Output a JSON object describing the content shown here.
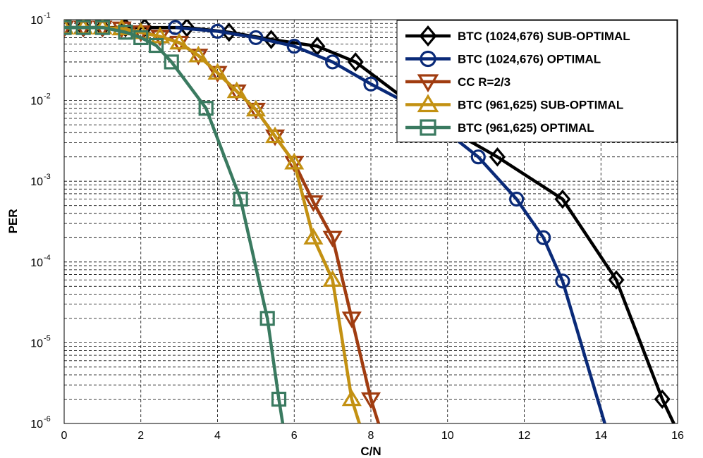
{
  "chart_data": {
    "type": "line",
    "title": "",
    "xlabel": "C/N",
    "ylabel": "PER",
    "xlim": [
      0,
      16
    ],
    "ylim": [
      1e-06,
      0.1
    ],
    "yscale": "log",
    "grid": true,
    "legend_position": "top-right",
    "x_ticks": [
      "0",
      "2",
      "4",
      "6",
      "8",
      "10",
      "12",
      "14",
      "16"
    ],
    "y_ticks": [
      {
        "base": "10",
        "exp": "-1"
      },
      {
        "base": "10",
        "exp": "-2"
      },
      {
        "base": "10",
        "exp": "-3"
      },
      {
        "base": "10",
        "exp": "-4"
      },
      {
        "base": "10",
        "exp": "-5"
      },
      {
        "base": "10",
        "exp": "-6"
      }
    ],
    "series": [
      {
        "name": "BTC (1024,676) SUB-OPTIMAL",
        "color": "#000000",
        "marker": "diamond",
        "x": [
          0,
          0.5,
          1.0,
          1.6,
          2.1,
          3.2,
          4.3,
          5.4,
          6.6,
          7.6,
          9.0,
          10.0,
          11.3,
          13.0,
          14.4,
          15.6,
          15.9
        ],
        "y": [
          0.08,
          0.08,
          0.08,
          0.08,
          0.08,
          0.08,
          0.07,
          0.057,
          0.047,
          0.03,
          0.0095,
          0.0045,
          0.002,
          0.0006,
          6e-05,
          2e-06,
          1e-06
        ]
      },
      {
        "name": "BTC (1024,676) OPTIMAL",
        "color": "#0a2a78",
        "marker": "circle",
        "x": [
          2.9,
          4.0,
          5.0,
          6.0,
          7.0,
          8.0,
          9.0,
          10.0,
          10.8,
          11.8,
          12.5,
          13.0,
          14.1
        ],
        "y": [
          0.08,
          0.072,
          0.06,
          0.047,
          0.03,
          0.016,
          0.009,
          0.004,
          0.002,
          0.0006,
          0.0002,
          5.8e-05,
          1e-06
        ]
      },
      {
        "name": "CC R=2/3",
        "color": "#a03c10",
        "marker": "triangle-down",
        "x": [
          0,
          0.5,
          1.0,
          1.5,
          2.0,
          2.5,
          3.0,
          3.5,
          4.0,
          4.5,
          5.0,
          5.5,
          6.0,
          6.5,
          7.0,
          7.5,
          8.0,
          8.2
        ],
        "y": [
          0.08,
          0.08,
          0.08,
          0.078,
          0.07,
          0.062,
          0.052,
          0.036,
          0.022,
          0.013,
          0.0077,
          0.0036,
          0.0017,
          0.00055,
          0.0002,
          2e-05,
          2e-06,
          1e-06
        ]
      },
      {
        "name": "BTC (961,625) SUB-OPTIMAL",
        "color": "#c39112",
        "marker": "triangle-up",
        "x": [
          0,
          0.5,
          1.0,
          1.5,
          2.0,
          2.5,
          3.0,
          3.5,
          4.0,
          4.5,
          5.0,
          5.5,
          6.0,
          6.5,
          7.0,
          7.5,
          7.7
        ],
        "y": [
          0.08,
          0.08,
          0.08,
          0.078,
          0.07,
          0.062,
          0.052,
          0.036,
          0.022,
          0.013,
          0.0077,
          0.0036,
          0.0017,
          0.0002,
          6e-05,
          2e-06,
          1e-06
        ]
      },
      {
        "name": "BTC (961,625) OPTIMAL",
        "color": "#3a7a60",
        "marker": "square",
        "x": [
          0,
          0.5,
          1.0,
          1.6,
          2.0,
          2.4,
          2.8,
          3.7,
          4.6,
          5.3,
          5.6,
          5.7
        ],
        "y": [
          0.08,
          0.08,
          0.08,
          0.07,
          0.06,
          0.048,
          0.03,
          0.008,
          0.0006,
          2e-05,
          2e-06,
          1e-06
        ]
      }
    ]
  }
}
